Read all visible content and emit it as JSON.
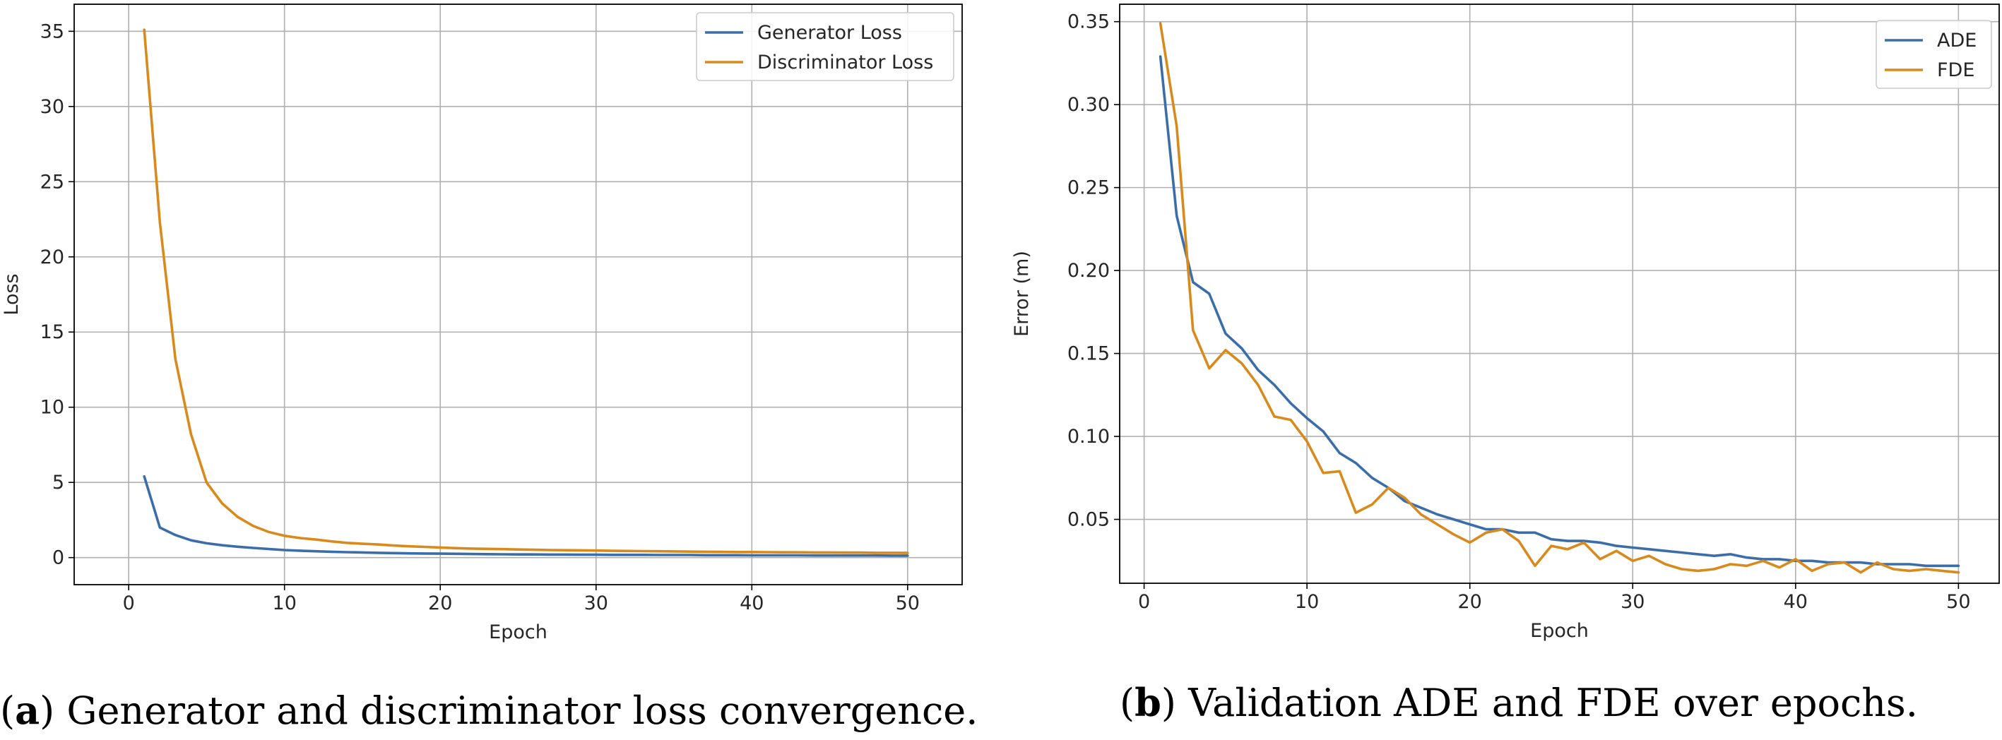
{
  "colors": {
    "blue": "#3b6ea8",
    "orange": "#d88a1c",
    "grid": "#b0b0b0"
  },
  "captions": [
    {
      "label": "a",
      "text": " Generator and discriminator loss convergence."
    },
    {
      "label": "b",
      "text": " Validation ADE and FDE over epochs."
    }
  ],
  "chart_data": [
    {
      "type": "line",
      "title": "",
      "xlabel": "Epoch",
      "ylabel": "Loss",
      "xlim": [
        -3.5,
        53.5
      ],
      "ylim": [
        -1.8,
        36.8
      ],
      "xticks": [
        0,
        10,
        20,
        30,
        40,
        50
      ],
      "yticks": [
        0,
        5,
        10,
        15,
        20,
        25,
        30,
        35
      ],
      "xtick_labels": [
        "0",
        "10",
        "20",
        "30",
        "40",
        "50"
      ],
      "ytick_labels": [
        "0",
        "5",
        "10",
        "15",
        "20",
        "25",
        "30",
        "35"
      ],
      "grid": true,
      "legend": "top-right",
      "x": [
        1,
        2,
        3,
        4,
        5,
        6,
        7,
        8,
        9,
        10,
        11,
        12,
        13,
        14,
        15,
        16,
        17,
        18,
        19,
        20,
        21,
        22,
        23,
        24,
        25,
        26,
        27,
        28,
        29,
        30,
        31,
        32,
        33,
        34,
        35,
        36,
        37,
        38,
        39,
        40,
        41,
        42,
        43,
        44,
        45,
        46,
        47,
        48,
        49,
        50
      ],
      "series": [
        {
          "name": "Generator Loss",
          "color": "#3b6ea8",
          "values": [
            5.4,
            2.0,
            1.5,
            1.15,
            0.95,
            0.82,
            0.72,
            0.64,
            0.57,
            0.5,
            0.46,
            0.42,
            0.39,
            0.36,
            0.34,
            0.32,
            0.3,
            0.28,
            0.27,
            0.26,
            0.25,
            0.24,
            0.23,
            0.22,
            0.21,
            0.21,
            0.2,
            0.2,
            0.19,
            0.19,
            0.18,
            0.18,
            0.18,
            0.17,
            0.17,
            0.17,
            0.16,
            0.16,
            0.16,
            0.15,
            0.15,
            0.15,
            0.15,
            0.14,
            0.14,
            0.14,
            0.14,
            0.14,
            0.13,
            0.13
          ]
        },
        {
          "name": "Discriminator Loss",
          "color": "#d88a1c",
          "values": [
            35.1,
            22.3,
            13.2,
            8.2,
            5.0,
            3.6,
            2.7,
            2.1,
            1.7,
            1.45,
            1.3,
            1.2,
            1.08,
            0.98,
            0.92,
            0.87,
            0.8,
            0.75,
            0.71,
            0.67,
            0.63,
            0.6,
            0.58,
            0.56,
            0.54,
            0.52,
            0.5,
            0.49,
            0.48,
            0.47,
            0.45,
            0.44,
            0.43,
            0.42,
            0.41,
            0.4,
            0.39,
            0.38,
            0.37,
            0.37,
            0.36,
            0.35,
            0.35,
            0.34,
            0.34,
            0.33,
            0.33,
            0.32,
            0.32,
            0.31
          ]
        }
      ]
    },
    {
      "type": "line",
      "title": "",
      "xlabel": "Epoch",
      "ylabel": "Error (m)",
      "xlim": [
        -1.5,
        52.5
      ],
      "ylim": [
        0.0115,
        0.3605
      ],
      "xticks": [
        0,
        10,
        20,
        30,
        40,
        50
      ],
      "yticks": [
        0.05,
        0.1,
        0.15,
        0.2,
        0.25,
        0.3,
        0.35
      ],
      "xtick_labels": [
        "0",
        "10",
        "20",
        "30",
        "40",
        "50"
      ],
      "ytick_labels": [
        "0.05",
        "0.10",
        "0.15",
        "0.20",
        "0.25",
        "0.30",
        "0.35"
      ],
      "grid": true,
      "legend": "top-right",
      "x": [
        1,
        2,
        3,
        4,
        5,
        6,
        7,
        8,
        9,
        10,
        11,
        12,
        13,
        14,
        15,
        16,
        17,
        18,
        19,
        20,
        21,
        22,
        23,
        24,
        25,
        26,
        27,
        28,
        29,
        30,
        31,
        32,
        33,
        34,
        35,
        36,
        37,
        38,
        39,
        40,
        41,
        42,
        43,
        44,
        45,
        46,
        47,
        48,
        49,
        50
      ],
      "series": [
        {
          "name": "ADE",
          "color": "#3b6ea8",
          "values": [
            0.329,
            0.233,
            0.193,
            0.186,
            0.162,
            0.153,
            0.14,
            0.131,
            0.12,
            0.111,
            0.103,
            0.09,
            0.084,
            0.075,
            0.069,
            0.061,
            0.057,
            0.053,
            0.05,
            0.047,
            0.044,
            0.044,
            0.042,
            0.042,
            0.038,
            0.037,
            0.037,
            0.036,
            0.034,
            0.033,
            0.032,
            0.031,
            0.03,
            0.029,
            0.028,
            0.029,
            0.027,
            0.026,
            0.026,
            0.025,
            0.025,
            0.024,
            0.024,
            0.024,
            0.023,
            0.023,
            0.023,
            0.022,
            0.022,
            0.022
          ]
        },
        {
          "name": "FDE",
          "color": "#d88a1c",
          "values": [
            0.349,
            0.287,
            0.164,
            0.141,
            0.152,
            0.144,
            0.131,
            0.112,
            0.11,
            0.097,
            0.078,
            0.079,
            0.054,
            0.059,
            0.069,
            0.063,
            0.053,
            0.047,
            0.041,
            0.036,
            0.042,
            0.044,
            0.037,
            0.022,
            0.034,
            0.032,
            0.036,
            0.026,
            0.031,
            0.025,
            0.028,
            0.023,
            0.02,
            0.019,
            0.02,
            0.023,
            0.022,
            0.025,
            0.021,
            0.026,
            0.019,
            0.023,
            0.024,
            0.018,
            0.024,
            0.02,
            0.019,
            0.02,
            0.019,
            0.018
          ]
        }
      ]
    }
  ]
}
